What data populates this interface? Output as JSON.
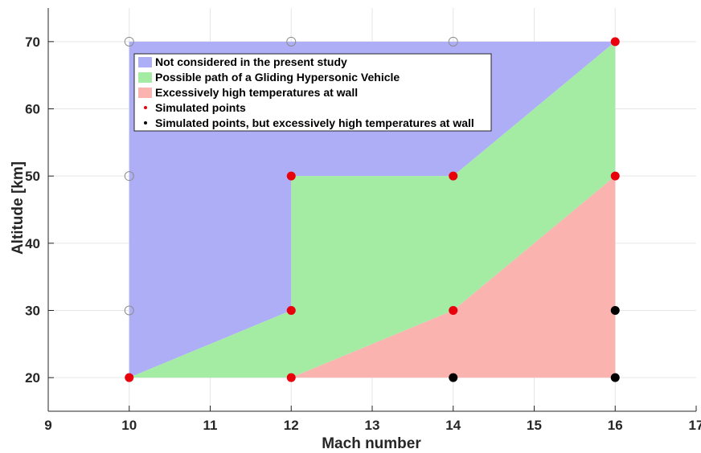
{
  "chart_data": {
    "type": "area",
    "xlabel": "Mach number",
    "ylabel": "Altitude [km]",
    "xlim": [
      9,
      17
    ],
    "ylim": [
      15,
      75
    ],
    "xticks": [
      9,
      10,
      11,
      12,
      13,
      14,
      15,
      16,
      17
    ],
    "yticks": [
      20,
      30,
      40,
      50,
      60,
      70
    ],
    "grid": true,
    "legend_position": "top-left",
    "regions": [
      {
        "name": "Not considered in the present study",
        "color": "#aeaef7",
        "polygon": [
          [
            10,
            20
          ],
          [
            10,
            70
          ],
          [
            16,
            70
          ],
          [
            14,
            50
          ],
          [
            12,
            50
          ],
          [
            12,
            30
          ]
        ]
      },
      {
        "name": "Possible path of a Gliding Hypersonic Vehicle",
        "color": "#a4eba4",
        "polygon": [
          [
            10,
            20
          ],
          [
            12,
            20
          ],
          [
            14,
            30
          ],
          [
            16,
            50
          ],
          [
            16,
            70
          ],
          [
            14,
            50
          ],
          [
            12,
            50
          ],
          [
            12,
            30
          ]
        ]
      },
      {
        "name": "Excessively high temperatures at wall",
        "color": "#fbb3b0",
        "polygon": [
          [
            12,
            20
          ],
          [
            16,
            20
          ],
          [
            16,
            50
          ],
          [
            14,
            30
          ]
        ]
      }
    ],
    "point_series": [
      {
        "name": "Simulated points",
        "color": "#e8000b",
        "points": [
          [
            10,
            20
          ],
          [
            12,
            20
          ],
          [
            12,
            30
          ],
          [
            12,
            50
          ],
          [
            14,
            30
          ],
          [
            14,
            50
          ],
          [
            16,
            50
          ],
          [
            16,
            70
          ]
        ]
      },
      {
        "name": "Simulated points, but excessively high temperatures at wall",
        "color": "#000000",
        "points": [
          [
            14,
            20
          ],
          [
            16,
            20
          ],
          [
            16,
            30
          ]
        ]
      }
    ],
    "open_points": {
      "color": "#8c8c8c",
      "points": [
        [
          10,
          30
        ],
        [
          10,
          50
        ],
        [
          10,
          70
        ],
        [
          12,
          70
        ],
        [
          14,
          70
        ]
      ]
    }
  }
}
